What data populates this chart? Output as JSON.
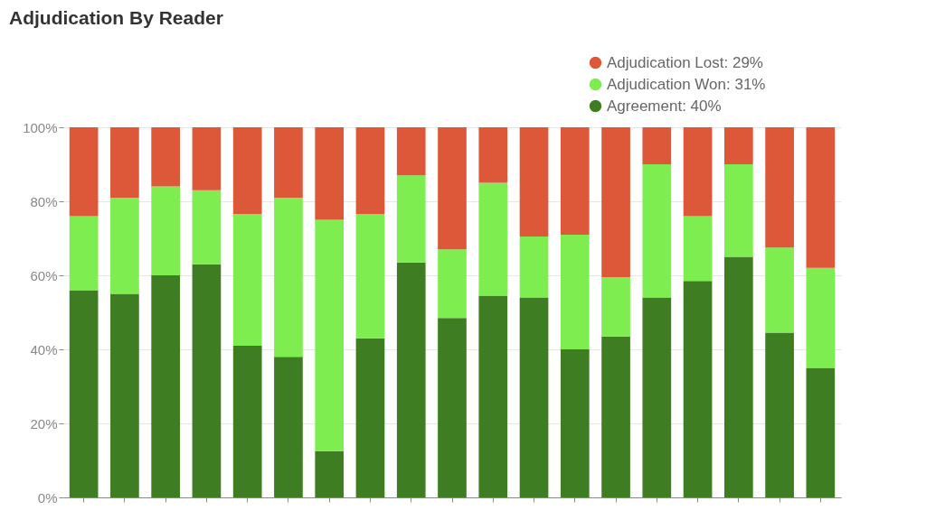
{
  "chart_data": {
    "type": "bar",
    "title": "Adjudication By Reader",
    "stacked": true,
    "categories": [
      null,
      null,
      null,
      null,
      null,
      null,
      null,
      null,
      null,
      null,
      null,
      null,
      null,
      null,
      null,
      null,
      null,
      null,
      null
    ],
    "series": [
      {
        "name": "Agreement: 40%",
        "color": "#3e7d22",
        "values": [
          56,
          55,
          60,
          63,
          41,
          38,
          12.5,
          43,
          63.5,
          48.5,
          54.5,
          54,
          40,
          43.5,
          54,
          58.5,
          65,
          44.5,
          35
        ]
      },
      {
        "name": "Adjudication Won: 31%",
        "color": "#7ded50",
        "values": [
          20,
          26,
          24,
          20,
          35.5,
          43,
          62.5,
          33.5,
          23.5,
          18.5,
          30.5,
          16.5,
          31,
          16,
          36,
          17.5,
          25,
          23,
          27
        ]
      },
      {
        "name": "Adjudication Lost: 29%",
        "color": "#dd5838",
        "values": [
          24,
          19,
          16,
          17,
          23.5,
          19,
          25,
          23.5,
          13,
          33,
          15,
          29.5,
          29,
          40.5,
          10,
          24,
          10,
          32.5,
          38
        ]
      }
    ],
    "ylim": [
      0,
      100
    ],
    "yticks": [
      {
        "value": 0,
        "label": "0%"
      },
      {
        "value": 20,
        "label": "20%"
      },
      {
        "value": 40,
        "label": "40%"
      },
      {
        "value": 60,
        "label": "60%"
      },
      {
        "value": 80,
        "label": "80%"
      },
      {
        "value": 100,
        "label": "100%"
      }
    ],
    "grid": "y",
    "legend": "top right"
  }
}
